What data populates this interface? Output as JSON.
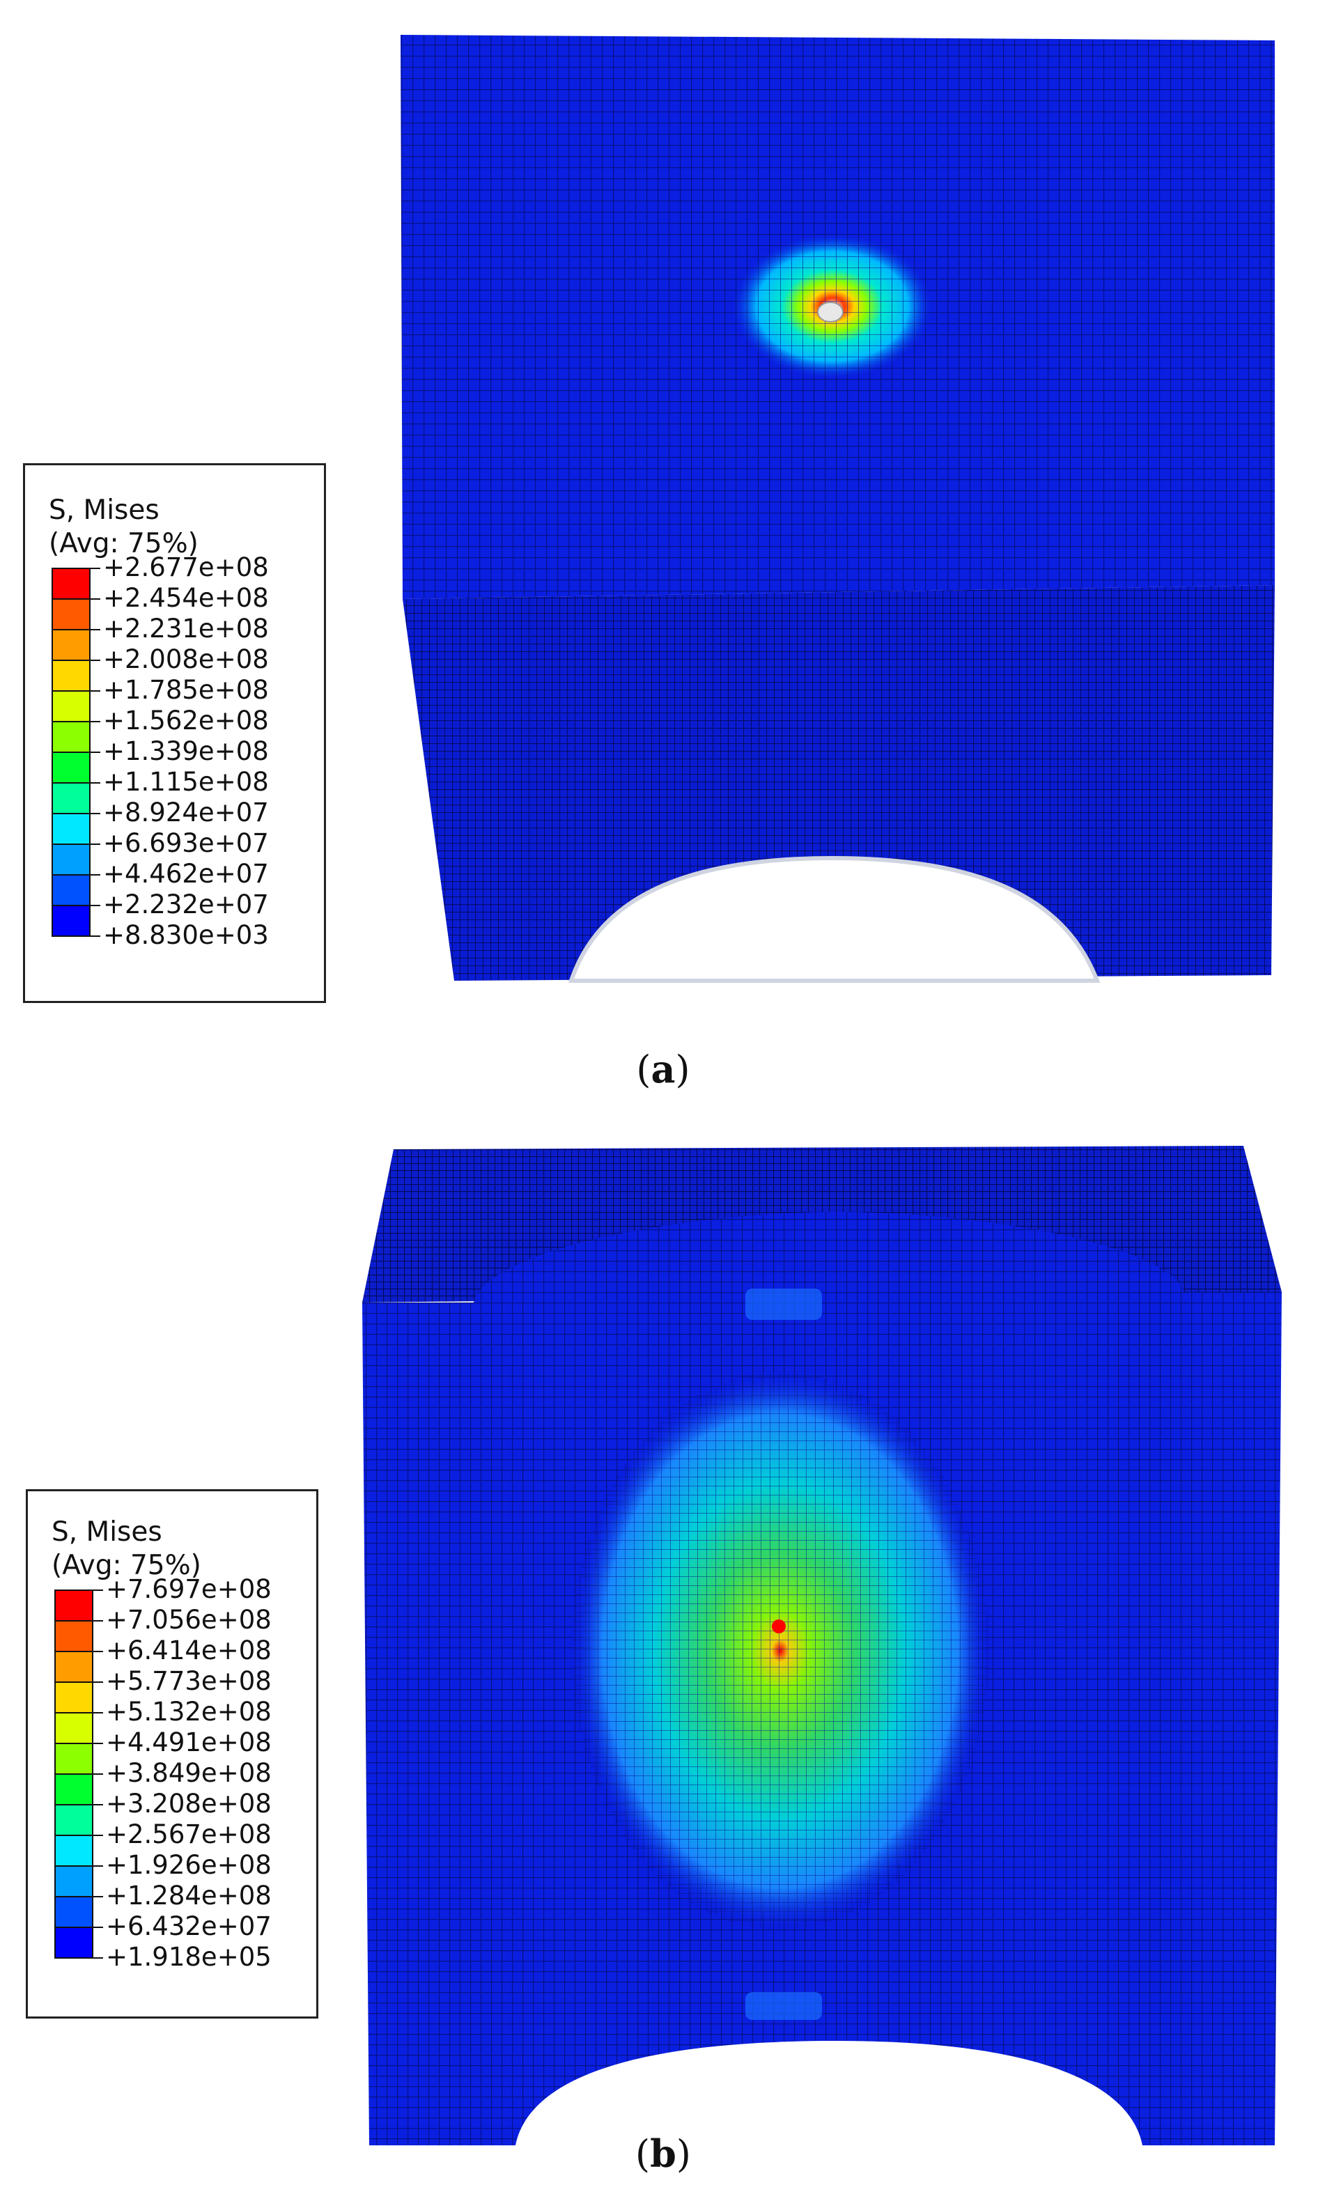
{
  "panels": [
    {
      "id": "a",
      "caption_open": "(",
      "caption_letter": "a",
      "caption_close": ")",
      "legend": {
        "title_line1": "S, Mises",
        "title_line2": "(Avg: 75%)",
        "labels": [
          "+2.677e+08",
          "+2.454e+08",
          "+2.231e+08",
          "+2.008e+08",
          "+1.785e+08",
          "+1.562e+08",
          "+1.339e+08",
          "+1.115e+08",
          "+8.924e+07",
          "+6.693e+07",
          "+4.462e+07",
          "+2.232e+07",
          "+8.830e+03"
        ]
      }
    },
    {
      "id": "b",
      "caption_open": "(",
      "caption_letter": "b",
      "caption_close": ")",
      "legend": {
        "title_line1": "S, Mises",
        "title_line2": "(Avg: 75%)",
        "labels": [
          "+7.697e+08",
          "+7.056e+08",
          "+6.414e+08",
          "+5.773e+08",
          "+5.132e+08",
          "+4.491e+08",
          "+3.849e+08",
          "+3.208e+08",
          "+2.567e+08",
          "+1.926e+08",
          "+1.284e+08",
          "+6.432e+07",
          "+1.918e+05"
        ]
      }
    }
  ],
  "colors": {
    "contour_bands": [
      "#ff0000",
      "#ff5a00",
      "#ff9d00",
      "#ffd800",
      "#d7ff00",
      "#8cff00",
      "#32ff00",
      "#00ff2e",
      "#00ff9b",
      "#00e8ff",
      "#00a0ff",
      "#0052ff",
      "#0000ff"
    ],
    "mesh_base": "#0a1fe0",
    "mesh_line": "#06128a"
  }
}
